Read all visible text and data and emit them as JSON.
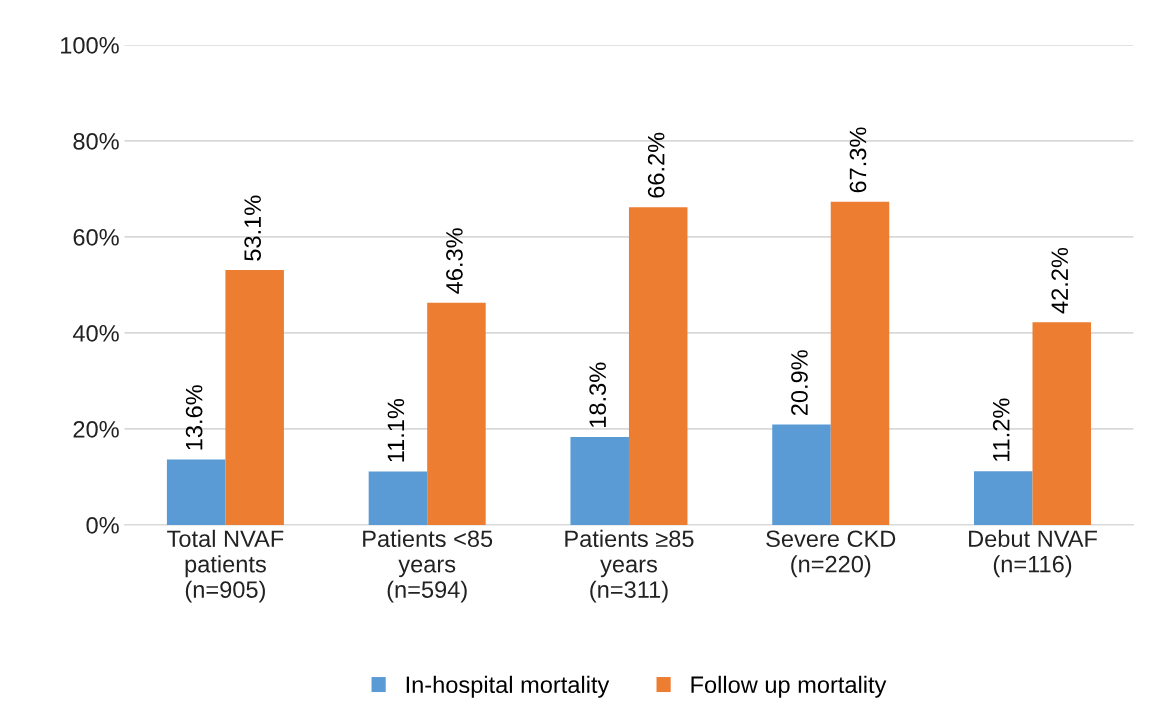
{
  "chart_data": {
    "type": "bar",
    "categories": [
      "Total NVAF\npatients\n(n=905)",
      "Patients <85\nyears\n(n=594)",
      "Patients ≥85\nyears\n(n=311)",
      "Severe CKD\n(n=220)",
      "Debut NVAF\n(n=116)"
    ],
    "series": [
      {
        "name": "In-hospital mortality",
        "color": "#5b9bd5",
        "values": [
          13.6,
          11.1,
          18.3,
          20.9,
          11.2
        ],
        "value_labels": [
          "13.6%",
          "11.1%",
          "18.3%",
          "20.9%",
          "11.2%"
        ]
      },
      {
        "name": "Follow up mortality",
        "color": "#ed7d31",
        "values": [
          53.1,
          46.3,
          66.2,
          67.3,
          42.2
        ],
        "value_labels": [
          "53.1%",
          "46.3%",
          "66.2%",
          "67.3%",
          "42.2%"
        ]
      }
    ],
    "ylim": [
      0,
      100
    ],
    "yticks": [
      {
        "value": 0,
        "label": "0%"
      },
      {
        "value": 20,
        "label": "20%"
      },
      {
        "value": 40,
        "label": "40%"
      },
      {
        "value": 60,
        "label": "60%"
      },
      {
        "value": 80,
        "label": "80%"
      },
      {
        "value": 100,
        "label": "100%"
      }
    ],
    "grid": "y",
    "legend": "bottom"
  }
}
